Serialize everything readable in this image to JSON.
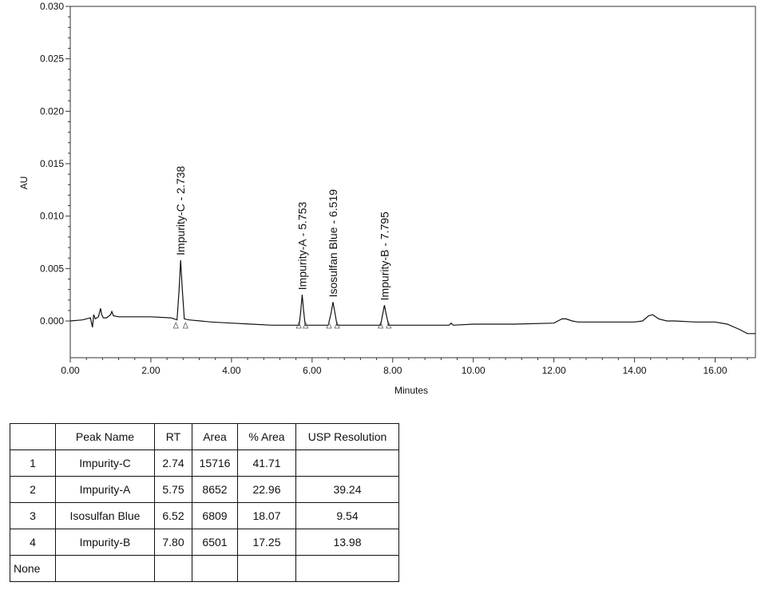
{
  "chart_data": {
    "type": "line",
    "xlabel": "Minutes",
    "ylabel": "AU",
    "xlim": [
      0,
      17
    ],
    "ylim": [
      -0.0035,
      0.03
    ],
    "x_ticks": [
      {
        "value": 0,
        "label": "0.00"
      },
      {
        "value": 2,
        "label": "2.00"
      },
      {
        "value": 4,
        "label": "4.00"
      },
      {
        "value": 6,
        "label": "6.00"
      },
      {
        "value": 8,
        "label": "8.00"
      },
      {
        "value": 10,
        "label": "10.00"
      },
      {
        "value": 12,
        "label": "12.00"
      },
      {
        "value": 14,
        "label": "14.00"
      },
      {
        "value": 16,
        "label": "16.00"
      }
    ],
    "y_ticks": [
      {
        "value": 0,
        "label": "0.000"
      },
      {
        "value": 0.005,
        "label": "0.005"
      },
      {
        "value": 0.01,
        "label": "0.010"
      },
      {
        "value": 0.015,
        "label": "0.015"
      },
      {
        "value": 0.02,
        "label": "0.020"
      },
      {
        "value": 0.025,
        "label": "0.025"
      },
      {
        "value": 0.03,
        "label": "0.030"
      }
    ],
    "trace": {
      "x": [
        0.0,
        0.3,
        0.5,
        0.55,
        0.58,
        0.62,
        0.7,
        0.75,
        0.78,
        0.82,
        0.9,
        1.0,
        1.03,
        1.07,
        1.2,
        1.5,
        2.0,
        2.5,
        2.65,
        2.7,
        2.738,
        2.78,
        2.83,
        2.95,
        3.5,
        4.0,
        4.5,
        5.0,
        5.5,
        5.68,
        5.72,
        5.753,
        5.79,
        5.83,
        6.0,
        6.4,
        6.47,
        6.519,
        6.57,
        6.62,
        7.0,
        7.7,
        7.75,
        7.795,
        7.84,
        7.9,
        8.5,
        9.0,
        9.4,
        9.45,
        9.5,
        10.0,
        11.0,
        12.0,
        12.2,
        12.3,
        12.45,
        12.6,
        13.0,
        13.5,
        14.0,
        14.2,
        14.35,
        14.45,
        14.6,
        14.8,
        15.0,
        15.5,
        16.0,
        16.3,
        16.6,
        16.8,
        17.0
      ],
      "y": [
        0.0,
        0.0001,
        0.0003,
        -0.0006,
        0.0006,
        0.0002,
        0.0004,
        0.0012,
        0.0006,
        0.0003,
        0.0003,
        0.0006,
        0.0009,
        0.0005,
        0.0004,
        0.0004,
        0.0004,
        0.0003,
        0.0001,
        0.003,
        0.0058,
        0.003,
        0.0002,
        0.0001,
        -0.0001,
        -0.0002,
        -0.0003,
        -0.0004,
        -0.0004,
        -0.0004,
        0.001,
        0.0025,
        0.001,
        -0.0004,
        -0.0004,
        -0.0004,
        0.0007,
        0.0018,
        0.0007,
        -0.0004,
        -0.0004,
        -0.0004,
        0.0006,
        0.0015,
        0.0006,
        -0.0004,
        -0.0004,
        -0.0004,
        -0.0004,
        -0.0002,
        -0.0004,
        -0.0003,
        -0.0003,
        -0.0002,
        0.0002,
        0.0002,
        0.0,
        -0.0001,
        -0.0001,
        -0.0001,
        -0.0001,
        0.0,
        0.0005,
        0.0006,
        0.0002,
        0.0,
        0.0,
        -0.0001,
        -0.0001,
        -0.0003,
        -0.0008,
        -0.0012,
        -0.0012
      ]
    },
    "peaks": [
      {
        "label": "Impurity-C - 2.738",
        "x": 2.738,
        "y": 0.0058,
        "start": 2.62,
        "end": 2.86
      },
      {
        "label": "Impurity-A - 5.753",
        "x": 5.753,
        "y": 0.0025,
        "start": 5.67,
        "end": 5.84
      },
      {
        "label": "Isosulfan Blue - 6.519",
        "x": 6.519,
        "y": 0.0018,
        "start": 6.42,
        "end": 6.62
      },
      {
        "label": "Impurity-B - 7.795",
        "x": 7.795,
        "y": 0.0015,
        "start": 7.7,
        "end": 7.9
      }
    ]
  },
  "table": {
    "headers": [
      "",
      "Peak Name",
      "RT",
      "Area",
      "% Area",
      "USP Resolution"
    ],
    "rows": [
      {
        "index": "1",
        "name": "Impurity-C",
        "rt": "2.74",
        "area": "15716",
        "pct_area": "41.71",
        "usp": ""
      },
      {
        "index": "2",
        "name": "Impurity-A",
        "rt": "5.75",
        "area": "8652",
        "pct_area": "22.96",
        "usp": "39.24"
      },
      {
        "index": "3",
        "name": "Isosulfan Blue",
        "rt": "6.52",
        "area": "6809",
        "pct_area": "18.07",
        "usp": "9.54"
      },
      {
        "index": "4",
        "name": "Impurity-B",
        "rt": "7.80",
        "area": "6501",
        "pct_area": "17.25",
        "usp": "13.98"
      },
      {
        "index": "None",
        "name": "",
        "rt": "",
        "area": "",
        "pct_area": "",
        "usp": ""
      }
    ]
  }
}
